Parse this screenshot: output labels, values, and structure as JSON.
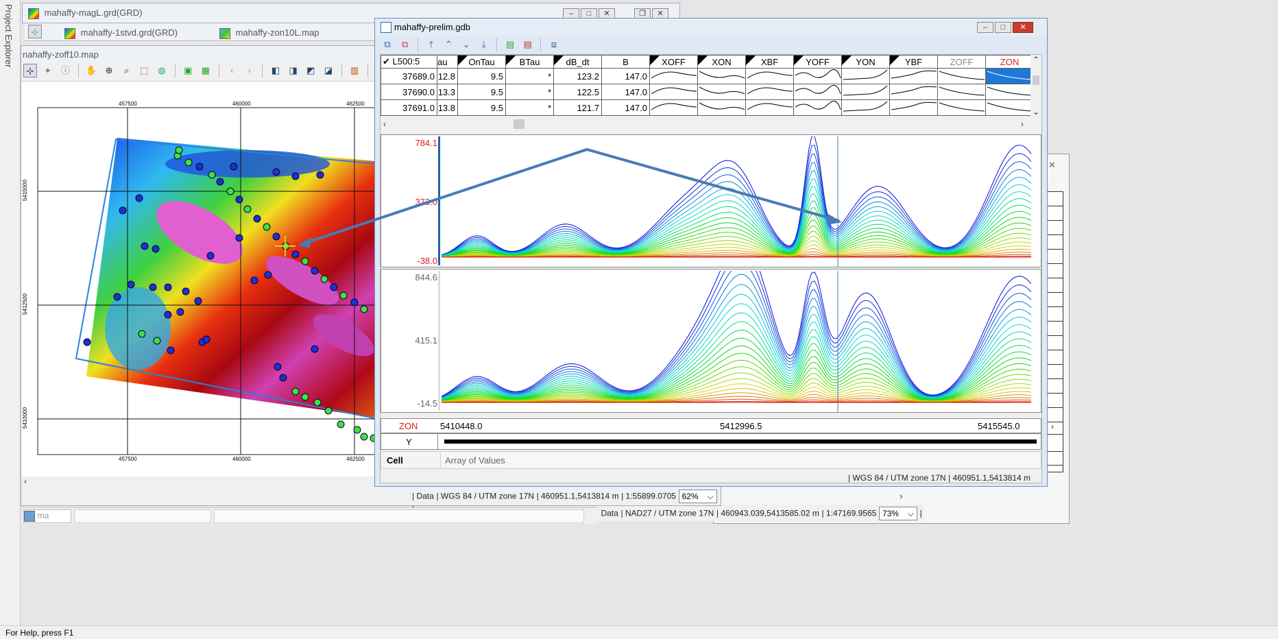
{
  "sidebar": {
    "project_explorer_label": "Project Explorer"
  },
  "status_bar": {
    "help": "For Help, press F1"
  },
  "back_windows": {
    "magL_title": "mahaffy-magL.grd(GRD)",
    "stvd_title": "mahaffy-1stvd.grd(GRD)",
    "zon10l_title": "mahaffy-zon10L.map",
    "zoff10_title": "nahaffy-zoff10.map",
    "taskbar_stub": "ma"
  },
  "map": {
    "x_ticks": [
      "457500",
      "460000",
      "462500"
    ],
    "y_ticks": [
      "5415000",
      "5412500",
      "5410000"
    ],
    "status_data": "| Data",
    "status_crs": "| WGS 84 / UTM zone 17N",
    "status_coords": "| 460951.1,5413814 m",
    "status_scale": "| 1:55899.0705",
    "zoom": "62%",
    "zoom_trailing": "|"
  },
  "zon10l_status": {
    "data": "| Data",
    "crs": "| NAD27 / UTM zone 17N",
    "coords": "| 460943.039,5413585.02 m",
    "scale": "| 1:47169.9565",
    "zoom": "73%",
    "trailing": "|"
  },
  "gdb": {
    "title": "mahaffy-prelim.gdb",
    "line_label": "✔ L500:5",
    "columns": [
      "au",
      "OnTau",
      "BTau",
      "dB_dt",
      "B",
      "XOFF",
      "XON",
      "XBF",
      "YOFF",
      "YON",
      "YBF",
      "ZOFF",
      "ZON"
    ],
    "rows": [
      {
        "fid": "37689.0",
        "au": "12.8",
        "ontau": "9.5",
        "btau": "*",
        "dbdt": "123.2",
        "b": "147.0"
      },
      {
        "fid": "37690.0",
        "au": "13.3",
        "ontau": "9.5",
        "btau": "*",
        "dbdt": "122.5",
        "b": "147.0"
      },
      {
        "fid": "37691.0",
        "au": "13.8",
        "ontau": "9.5",
        "btau": "*",
        "dbdt": "121.7",
        "b": "147.0"
      }
    ],
    "profile1": {
      "max": "784.1",
      "mid": "373.0",
      "min": "-38.0"
    },
    "profile2": {
      "max": "844.6",
      "mid": "415.1",
      "min": "-14.5"
    },
    "x_channel": "ZON",
    "x_start": "5410448.0",
    "x_mid": "5412996.5",
    "x_end": "5415545.0",
    "y_channel": "Y",
    "cell_label": "Cell",
    "cell_value": "Array of Values",
    "status_crs": "| WGS 84 / UTM zone 17N",
    "status_coords": "| 460951.1,5413814 m"
  },
  "colors": {
    "accent_blue": "#1e78d6",
    "profile_label_red": "#e02020",
    "arrow": "#4a7ab4"
  }
}
